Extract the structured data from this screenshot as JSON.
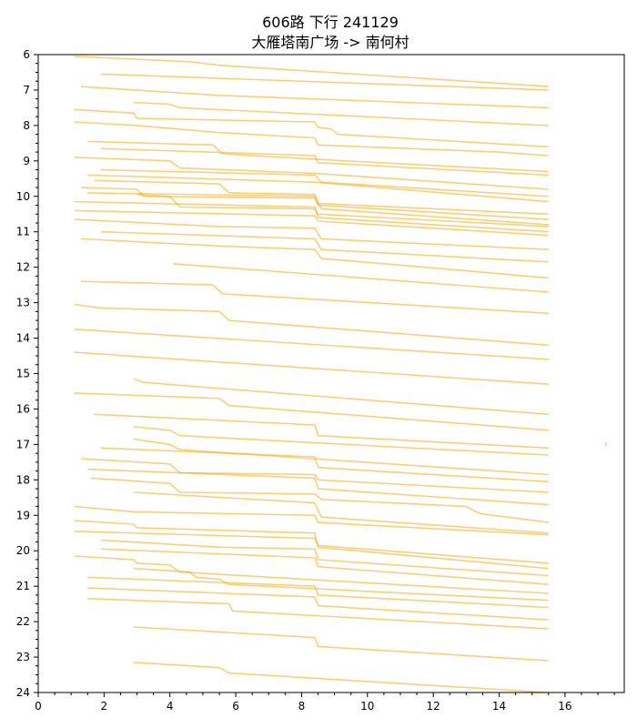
{
  "chart_data": {
    "type": "line",
    "title": [
      "606路  下行 241129",
      "大雁塔南广场 -> 南何村"
    ],
    "xlabel": "",
    "ylabel": "",
    "xlim": [
      0,
      17.8
    ],
    "ylim": [
      24,
      6
    ],
    "x_ticks": [
      0,
      2,
      4,
      6,
      8,
      10,
      12,
      14,
      16
    ],
    "y_ticks": [
      6,
      7,
      8,
      9,
      10,
      11,
      12,
      13,
      14,
      15,
      16,
      17,
      18,
      19,
      20,
      21,
      22,
      23,
      24
    ],
    "grid": false,
    "legend": "none",
    "line_color": "#FFA500",
    "series": [
      {
        "x": [
          1.1,
          4.6,
          5.5,
          15.5
        ],
        "y": [
          6.05,
          6.2,
          6.3,
          6.9
        ]
      },
      {
        "x": [
          1.9,
          15.5
        ],
        "y": [
          6.55,
          7.0
        ]
      },
      {
        "x": [
          1.3,
          5.5,
          15.5
        ],
        "y": [
          6.9,
          7.15,
          7.5
        ]
      },
      {
        "x": [
          2.9,
          4.0,
          4.3,
          15.5
        ],
        "y": [
          7.35,
          7.4,
          7.5,
          8.0
        ]
      },
      {
        "x": [
          1.1,
          2.9,
          3.0,
          8.4,
          8.5,
          8.9,
          9.1,
          15.5
        ],
        "y": [
          7.55,
          7.65,
          7.8,
          7.9,
          8.05,
          8.1,
          8.25,
          8.6
        ]
      },
      {
        "x": [
          1.1,
          3.0,
          5.5,
          8.4,
          8.5,
          14.0,
          15.5
        ],
        "y": [
          7.9,
          8.0,
          8.2,
          8.35,
          8.55,
          8.75,
          8.85
        ]
      },
      {
        "x": [
          1.5,
          5.3,
          5.6,
          8.4,
          15.5
        ],
        "y": [
          8.45,
          8.55,
          8.8,
          8.95,
          9.3
        ]
      },
      {
        "x": [
          1.9,
          8.4,
          8.5,
          15.5
        ],
        "y": [
          8.65,
          8.85,
          9.05,
          9.4
        ]
      },
      {
        "x": [
          1.1,
          4.0,
          4.3,
          8.4,
          15.5
        ],
        "y": [
          8.9,
          9.0,
          9.2,
          9.35,
          9.8
        ]
      },
      {
        "x": [
          1.9,
          8.4,
          8.6,
          15.5
        ],
        "y": [
          9.25,
          9.4,
          9.6,
          10.0
        ]
      },
      {
        "x": [
          1.5,
          8.4,
          15.5
        ],
        "y": [
          9.4,
          9.6,
          10.15
        ]
      },
      {
        "x": [
          1.7,
          5.5,
          5.8,
          8.4,
          8.5,
          15.5
        ],
        "y": [
          9.55,
          9.65,
          9.9,
          9.95,
          10.2,
          10.5
        ]
      },
      {
        "x": [
          1.3,
          3.0,
          3.2,
          8.4,
          8.5,
          15.5
        ],
        "y": [
          9.75,
          9.8,
          10.0,
          10.05,
          10.25,
          10.65
        ]
      },
      {
        "x": [
          1.5,
          8.4,
          8.6,
          15.5
        ],
        "y": [
          9.9,
          10.0,
          10.35,
          10.8
        ]
      },
      {
        "x": [
          3.0,
          4.0,
          4.3,
          8.4,
          8.5,
          15.5
        ],
        "y": [
          9.95,
          10.0,
          10.3,
          10.35,
          10.5,
          10.85
        ]
      },
      {
        "x": [
          1.1,
          8.4,
          8.5,
          15.5
        ],
        "y": [
          10.15,
          10.3,
          10.6,
          11.0
        ]
      },
      {
        "x": [
          1.1,
          8.4,
          8.5,
          15.5
        ],
        "y": [
          10.4,
          10.55,
          10.7,
          11.1
        ]
      },
      {
        "x": [
          1.1,
          5.5,
          8.4,
          8.6,
          15.5
        ],
        "y": [
          10.65,
          10.85,
          10.9,
          11.2,
          11.5
        ]
      },
      {
        "x": [
          1.9,
          8.4,
          8.6,
          15.5
        ],
        "y": [
          11.0,
          11.2,
          11.5,
          11.85
        ]
      },
      {
        "x": [
          1.3,
          5.5,
          8.4,
          8.6,
          15.5
        ],
        "y": [
          11.2,
          11.4,
          11.5,
          11.75,
          12.3
        ]
      },
      {
        "x": [
          4.1,
          8.4,
          15.5
        ],
        "y": [
          11.9,
          12.2,
          12.7
        ]
      },
      {
        "x": [
          1.3,
          5.3,
          5.6,
          15.5
        ],
        "y": [
          12.4,
          12.5,
          12.75,
          13.3
        ]
      },
      {
        "x": [
          1.1,
          1.9,
          5.5,
          5.8,
          15.5
        ],
        "y": [
          13.05,
          13.15,
          13.25,
          13.5,
          14.2
        ]
      },
      {
        "x": [
          1.1,
          15.5
        ],
        "y": [
          13.75,
          14.6
        ]
      },
      {
        "x": [
          1.1,
          15.5
        ],
        "y": [
          14.4,
          15.3
        ]
      },
      {
        "x": [
          2.9,
          3.2,
          15.5
        ],
        "y": [
          15.15,
          15.25,
          16.15
        ]
      },
      {
        "x": [
          1.1,
          5.5,
          5.8,
          15.5
        ],
        "y": [
          15.55,
          15.7,
          15.9,
          16.6
        ]
      },
      {
        "x": [
          1.7,
          8.4,
          8.5,
          15.5
        ],
        "y": [
          16.15,
          16.45,
          16.75,
          17.1
        ]
      },
      {
        "x": [
          2.9,
          4.0,
          4.3,
          15.5
        ],
        "y": [
          16.5,
          16.6,
          16.75,
          17.3
        ]
      },
      {
        "x": [
          2.9,
          4.0,
          4.3,
          15.5
        ],
        "y": [
          16.85,
          17.0,
          17.15,
          17.85
        ]
      },
      {
        "x": [
          1.9,
          8.4,
          8.5,
          15.5
        ],
        "y": [
          17.1,
          17.35,
          17.65,
          18.05
        ]
      },
      {
        "x": [
          1.3,
          4.0,
          4.3,
          8.4,
          8.5,
          15.5
        ],
        "y": [
          17.4,
          17.55,
          17.8,
          17.85,
          18.0,
          18.35
        ]
      },
      {
        "x": [
          1.5,
          8.4,
          8.5,
          15.5
        ],
        "y": [
          17.7,
          17.95,
          18.25,
          18.7
        ]
      },
      {
        "x": [
          1.6,
          4.0,
          4.3,
          8.4,
          8.6,
          13.0,
          13.4,
          15.5
        ],
        "y": [
          17.95,
          18.1,
          18.35,
          18.4,
          18.55,
          18.75,
          18.95,
          19.2
        ]
      },
      {
        "x": [
          2.9,
          8.4,
          8.6,
          15.5
        ],
        "y": [
          18.35,
          18.65,
          19.05,
          19.5
        ]
      },
      {
        "x": [
          1.1,
          2.9,
          8.4,
          8.5,
          15.5
        ],
        "y": [
          18.75,
          18.9,
          19.0,
          19.2,
          19.55
        ]
      },
      {
        "x": [
          1.1,
          2.9,
          3.0,
          8.4,
          8.5,
          15.5
        ],
        "y": [
          19.15,
          19.25,
          19.35,
          19.5,
          19.9,
          20.5
        ]
      },
      {
        "x": [
          1.1,
          8.4,
          8.5,
          15.5
        ],
        "y": [
          19.45,
          19.65,
          19.85,
          20.35
        ]
      },
      {
        "x": [
          1.9,
          5.5,
          8.4,
          8.5,
          15.5
        ],
        "y": [
          19.7,
          19.9,
          19.95,
          20.25,
          20.7
        ]
      },
      {
        "x": [
          1.9,
          8.4,
          8.5,
          15.5
        ],
        "y": [
          19.95,
          20.2,
          20.45,
          20.95
        ]
      },
      {
        "x": [
          1.1,
          2.9,
          3.0,
          4.0,
          4.3,
          15.5
        ],
        "y": [
          20.15,
          20.25,
          20.35,
          20.4,
          20.6,
          21.2
        ]
      },
      {
        "x": [
          2.9,
          4.6,
          4.8,
          5.5,
          5.8,
          15.5
        ],
        "y": [
          20.5,
          20.6,
          20.75,
          20.8,
          20.95,
          21.4
        ]
      },
      {
        "x": [
          1.5,
          8.4,
          8.5,
          15.5
        ],
        "y": [
          20.75,
          21.0,
          21.25,
          21.6
        ]
      },
      {
        "x": [
          1.5,
          8.4,
          8.5,
          15.5
        ],
        "y": [
          21.05,
          21.3,
          21.55,
          21.95
        ]
      },
      {
        "x": [
          1.5,
          5.8,
          5.9,
          15.5
        ],
        "y": [
          21.35,
          21.5,
          21.7,
          22.2
        ]
      },
      {
        "x": [
          2.9,
          8.4,
          8.5,
          15.5
        ],
        "y": [
          22.15,
          22.45,
          22.7,
          23.1
        ]
      },
      {
        "x": [
          2.9,
          5.5,
          5.8,
          15.5
        ],
        "y": [
          23.15,
          23.3,
          23.45,
          24.0
        ]
      },
      {
        "x": [
          17.25,
          17.25
        ],
        "y": [
          16.95,
          17.05
        ]
      }
    ]
  }
}
